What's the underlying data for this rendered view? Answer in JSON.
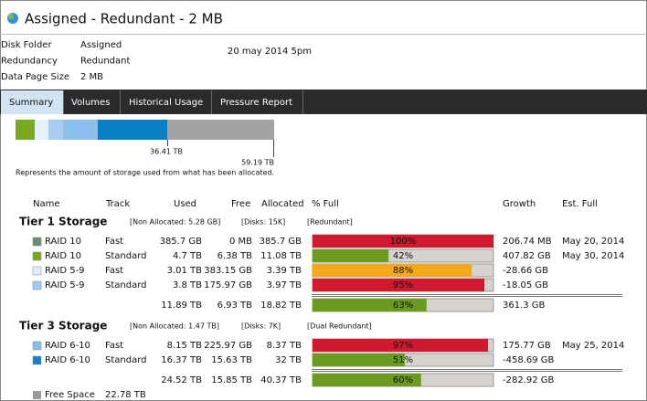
{
  "header": {
    "title": "Assigned - Redundant - 2 MB"
  },
  "info": {
    "rows": [
      [
        "Disk Folder",
        "Assigned"
      ],
      [
        "Redundancy",
        "Redundant"
      ],
      [
        "Data Page Size",
        "2 MB"
      ]
    ],
    "date": "20 may 2014 5pm"
  },
  "tabs": [
    "Summary",
    "Volumes",
    "Historical Usage",
    "Pressure Report"
  ],
  "usage": {
    "used_label": "36.41 TB",
    "allocated_label": "59.19 TB",
    "note": "Represents the amount of storage used from what has been allocated."
  },
  "table": {
    "columns": [
      "Name",
      "Track",
      "Used",
      "Free",
      "Allocated",
      "% Full",
      "Growth",
      "Est. Full"
    ],
    "tiers": [
      {
        "title": "Tier 1 Storage",
        "non_allocated": "[Non Allocated: 5.28 GB]",
        "disks": "[Disks: 15K]",
        "redundancy": "[Redundant]",
        "rows": [
          {
            "color": "#6b8f73",
            "name": "RAID 10",
            "track": "Fast",
            "used": "385.7 GB",
            "free": "0 MB",
            "allocated": "385.7 GB",
            "pct": 100,
            "pct_label": "100%",
            "bar_color": "#d0182e",
            "growth": "206.74 MB",
            "est_full": "May 20, 2014"
          },
          {
            "color": "#79a91f",
            "name": "RAID 10",
            "track": "Standard",
            "used": "4.7 TB",
            "free": "6.38 TB",
            "allocated": "11.08 TB",
            "pct": 42,
            "pct_label": "42%",
            "bar_color": "#6a9a1f",
            "growth": "407.82 GB",
            "est_full": "May 30, 2014"
          },
          {
            "color": "#e2effa",
            "name": "RAID 5-9",
            "track": "Fast",
            "used": "3.01 TB",
            "free": "383.15 GB",
            "allocated": "3.39 TB",
            "pct": 88,
            "pct_label": "88%",
            "bar_color": "#f4a81c",
            "growth": "-28.66 GB"
          },
          {
            "color": "#9fcaee",
            "name": "RAID 5-9",
            "track": "Standard",
            "used": "3.8 TB",
            "free": "175.97 GB",
            "allocated": "3.97 TB",
            "pct": 95,
            "pct_label": "95%",
            "bar_color": "#d0182e",
            "growth": "-18.05 GB"
          }
        ],
        "total": {
          "used": "11.89 TB",
          "free": "6.93 TB",
          "allocated": "18.82 TB",
          "pct": 63,
          "pct_label": "63%",
          "bar_color": "#6a9a1f",
          "growth": "361.3 GB"
        }
      },
      {
        "title": "Tier 3 Storage",
        "non_allocated": "[Non Allocated: 1.47 TB]",
        "disks": "[Disks: 7K]",
        "redundancy": "[Dual Redundant]",
        "rows": [
          {
            "color": "#88bfe9",
            "name": "RAID 6-10",
            "track": "Fast",
            "used": "8.15 TB",
            "free": "225.97 GB",
            "allocated": "8.37 TB",
            "pct": 97,
            "pct_label": "97%",
            "bar_color": "#d0182e",
            "growth": "175.77 GB",
            "est_full": "May 25, 2014"
          },
          {
            "color": "#1a7fc6",
            "name": "RAID 6-10",
            "track": "Standard",
            "used": "16.37 TB",
            "free": "15.63 TB",
            "allocated": "32 TB",
            "pct": 51,
            "pct_label": "51%",
            "bar_color": "#6a9a1f",
            "growth": "-458.69 GB"
          }
        ],
        "total": {
          "used": "24.52 TB",
          "free": "15.85 TB",
          "allocated": "40.37 TB",
          "pct": 60,
          "pct_label": "60%",
          "bar_color": "#6a9a1f",
          "growth": "-282.92 GB"
        }
      }
    ],
    "free_space": {
      "color": "#9a9a9a",
      "label": "Free Space",
      "value": "22.78 TB"
    }
  }
}
